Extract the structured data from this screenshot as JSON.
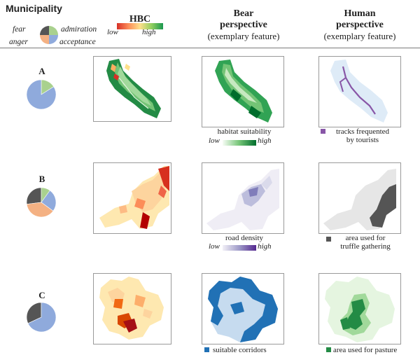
{
  "header": {
    "municipality": "Municipality",
    "hbc": "HBC",
    "hbc_low": "low",
    "hbc_high": "high",
    "bear_title": "Bear",
    "bear_sub1": "perspective",
    "bear_sub2": "(exemplary feature)",
    "human_title": "Human",
    "human_sub1": "perspective",
    "human_sub2": "(exemplary feature)"
  },
  "emotions": {
    "fear": "fear",
    "admiration": "admiration",
    "anger": "anger",
    "acceptance": "acceptance"
  },
  "colors": {
    "fear": "#555555",
    "admiration": "#a9d18e",
    "anger": "#f4b183",
    "acceptance": "#8faadc"
  },
  "rows": [
    {
      "label": "A",
      "pie": {
        "fear": 0,
        "admiration": 0.16,
        "anger": 0,
        "acceptance": 0.84
      },
      "bear_legend": "habitat suitability",
      "bear_low": "low",
      "bear_high": "high",
      "human_legend_1": "tracks frequented",
      "human_legend_2": "by tourists"
    },
    {
      "label": "B",
      "pie": {
        "fear": 0.27,
        "admiration": 0.1,
        "anger": 0.38,
        "acceptance": 0.25
      },
      "bear_legend": "road density",
      "bear_low": "low",
      "bear_high": "high",
      "human_legend_1": "area used for",
      "human_legend_2": "truffle gathering"
    },
    {
      "label": "C",
      "pie": {
        "fear": 0.32,
        "admiration": 0,
        "anger": 0,
        "acceptance": 0.68
      },
      "bear_legend": "suitable corridors",
      "human_legend_1": "area used for pasture"
    }
  ]
}
